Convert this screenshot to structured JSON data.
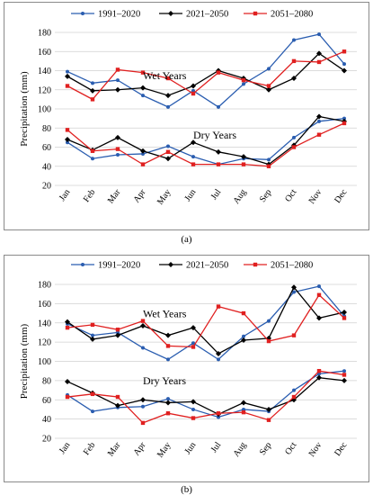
{
  "colors": {
    "1991-2020": "#2a5db0",
    "2021-2050": "#000000",
    "2051-2080": "#e02020",
    "grid": "#d0d0d0"
  },
  "panel_labels": {
    "a": "(a)",
    "b": "(b)"
  },
  "chart_data": [
    {
      "type": "line",
      "panel": "a",
      "ylabel": "Precipitation  (mm)",
      "ylim": [
        20,
        180
      ],
      "yticks": [
        20,
        40,
        60,
        80,
        100,
        120,
        140,
        160,
        180
      ],
      "grid": true,
      "legend": "top",
      "categories": [
        "Jan",
        "Feb",
        "Mar",
        "Apr",
        "May",
        "Jun",
        "Jul",
        "Aug",
        "Sep",
        "Oct",
        "Nov",
        "Dec"
      ],
      "annotations": [
        {
          "text": "Wet Years",
          "x": "Apr",
          "y": 131
        },
        {
          "text": "Dry Years",
          "x": "Jun",
          "y": 69
        }
      ],
      "series": [
        {
          "name": "1991–2020",
          "group": "wet",
          "values": [
            139,
            127,
            130,
            114,
            102,
            119,
            102,
            126,
            142,
            172,
            178,
            147
          ]
        },
        {
          "name": "2021–2050",
          "group": "wet",
          "values": [
            134,
            119,
            120,
            122,
            114,
            124,
            140,
            132,
            120,
            132,
            158,
            140
          ]
        },
        {
          "name": "2051–2080",
          "group": "wet",
          "values": [
            124,
            110,
            141,
            138,
            132,
            116,
            138,
            130,
            124,
            150,
            149,
            160
          ]
        },
        {
          "name": "1991–2020",
          "group": "dry",
          "values": [
            65,
            48,
            52,
            53,
            61,
            50,
            42,
            48,
            47,
            70,
            87,
            90
          ]
        },
        {
          "name": "2021–2050",
          "group": "dry",
          "values": [
            68,
            57,
            70,
            56,
            48,
            65,
            55,
            50,
            42,
            62,
            92,
            87
          ]
        },
        {
          "name": "2051–2080",
          "group": "dry",
          "values": [
            78,
            56,
            58,
            42,
            55,
            42,
            42,
            42,
            40,
            60,
            73,
            85
          ]
        }
      ]
    },
    {
      "type": "line",
      "panel": "b",
      "ylabel": "Precipitation  (mm)",
      "ylim": [
        20,
        180
      ],
      "yticks": [
        20,
        40,
        60,
        80,
        100,
        120,
        140,
        160,
        180
      ],
      "grid": true,
      "legend": "top",
      "categories": [
        "Jan",
        "Feb",
        "Mar",
        "Apr",
        "May",
        "Jun",
        "Jul",
        "Aug",
        "Sep",
        "Oct",
        "Nov",
        "Dec"
      ],
      "annotations": [
        {
          "text": "Wet Years",
          "x": "Apr",
          "y": 146
        },
        {
          "text": "Dry Years",
          "x": "Apr",
          "y": 76
        }
      ],
      "series": [
        {
          "name": "1991–2020",
          "group": "wet",
          "values": [
            139,
            127,
            130,
            114,
            102,
            119,
            102,
            126,
            142,
            172,
            178,
            147
          ]
        },
        {
          "name": "2021–2050",
          "group": "wet",
          "values": [
            141,
            123,
            127,
            137,
            127,
            135,
            108,
            122,
            124,
            177,
            145,
            151
          ]
        },
        {
          "name": "2051–2080",
          "group": "wet",
          "values": [
            135,
            138,
            133,
            142,
            116,
            115,
            157,
            150,
            121,
            127,
            169,
            145
          ]
        },
        {
          "name": "1991–2020",
          "group": "dry",
          "values": [
            65,
            48,
            52,
            53,
            61,
            50,
            42,
            50,
            48,
            70,
            87,
            90
          ]
        },
        {
          "name": "2021–2050",
          "group": "dry",
          "values": [
            79,
            67,
            54,
            60,
            57,
            58,
            45,
            57,
            50,
            60,
            83,
            80
          ]
        },
        {
          "name": "2051–2080",
          "group": "dry",
          "values": [
            63,
            66,
            63,
            36,
            46,
            41,
            46,
            47,
            39,
            63,
            90,
            86
          ]
        }
      ]
    }
  ]
}
